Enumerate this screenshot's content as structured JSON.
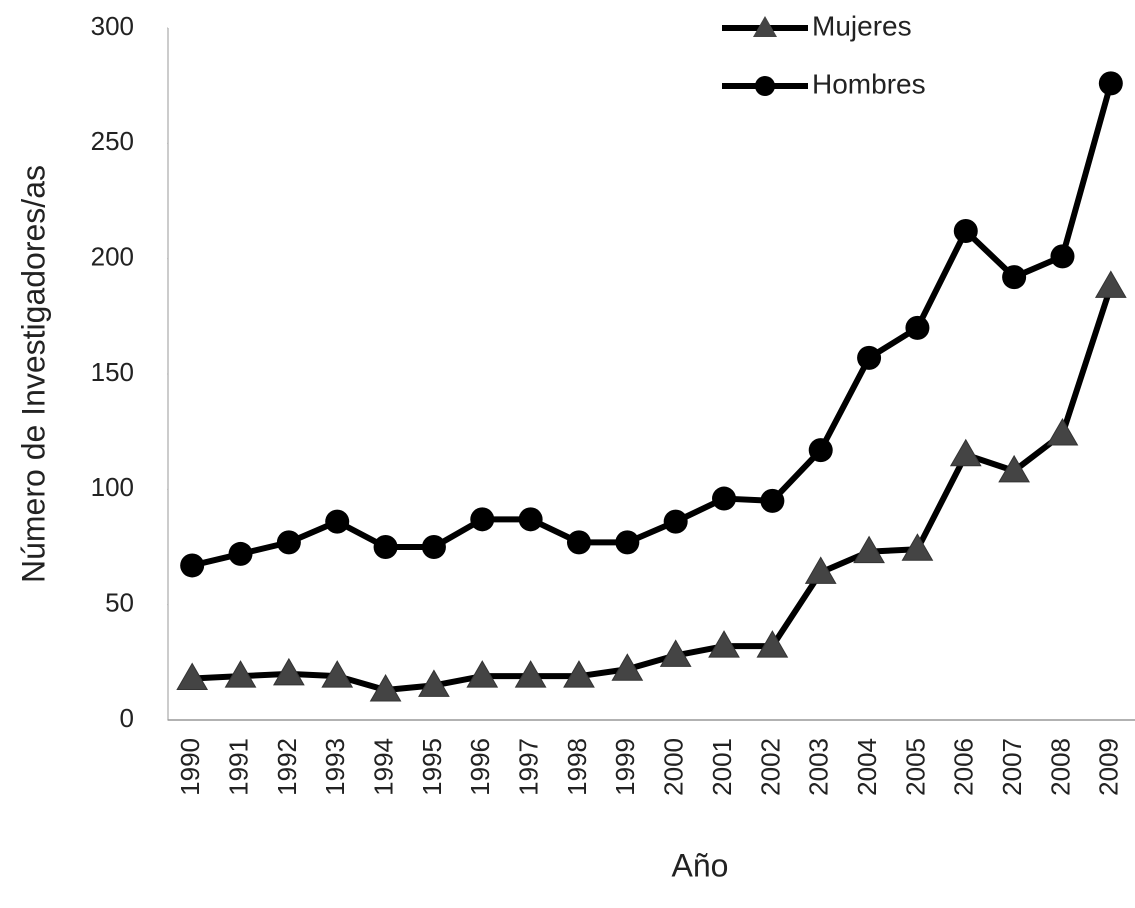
{
  "chart_data": {
    "type": "line",
    "x_label": "Año",
    "y_label": "Número de Investigadores/as",
    "categories": [
      "1990",
      "1991",
      "1992",
      "1993",
      "1994",
      "1995",
      "1996",
      "1997",
      "1998",
      "1999",
      "2000",
      "2001",
      "2002",
      "2003",
      "2004",
      "2005",
      "2006",
      "2007",
      "2008",
      "2009"
    ],
    "series": [
      {
        "name": "Mujeres",
        "color": "#000000",
        "marker": "triangle",
        "values": [
          18,
          19,
          20,
          19,
          13,
          15,
          19,
          19,
          19,
          22,
          28,
          32,
          32,
          64,
          73,
          74,
          115,
          108,
          124,
          188
        ]
      },
      {
        "name": "Hombres",
        "color": "#000000",
        "marker": "circle",
        "values": [
          67,
          72,
          77,
          86,
          75,
          75,
          87,
          87,
          77,
          77,
          86,
          96,
          95,
          117,
          157,
          170,
          212,
          192,
          201,
          276
        ]
      }
    ],
    "ylim": [
      0,
      300
    ],
    "yticks": [
      0,
      50,
      100,
      150,
      200,
      250,
      300
    ],
    "grid": false,
    "legend": "top-right"
  }
}
